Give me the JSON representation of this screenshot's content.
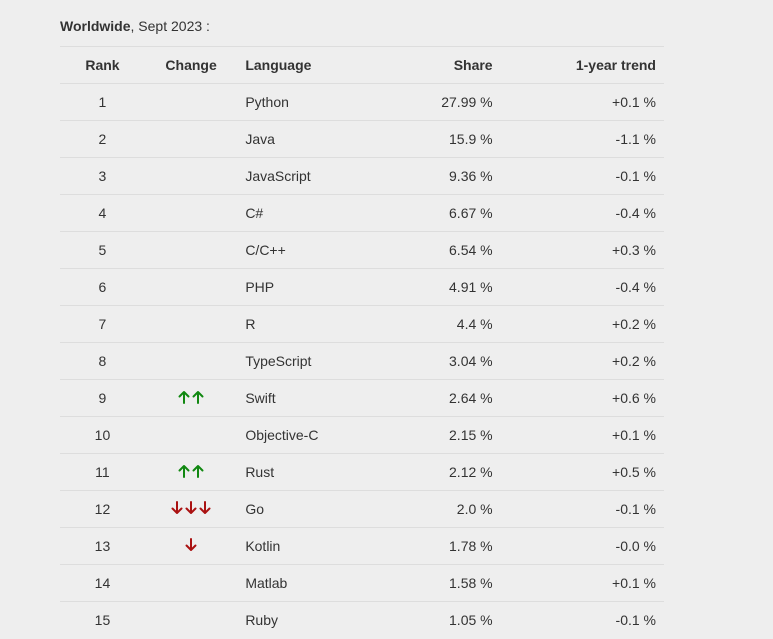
{
  "caption": {
    "region": "Worldwide",
    "date": ", Sept 2023 :"
  },
  "headers": {
    "rank": "Rank",
    "change": "Change",
    "language": "Language",
    "share": "Share",
    "trend": "1-year trend"
  },
  "colors": {
    "up_arrow": "#118811",
    "down_arrow": "#aa1111",
    "background": "#eeeeee",
    "border": "#dddddd"
  },
  "rows": [
    {
      "rank": "1",
      "change": {
        "dir": "none",
        "count": 0
      },
      "language": "Python",
      "share": "27.99 %",
      "trend": "+0.1 %"
    },
    {
      "rank": "2",
      "change": {
        "dir": "none",
        "count": 0
      },
      "language": "Java",
      "share": "15.9 %",
      "trend": "-1.1 %"
    },
    {
      "rank": "3",
      "change": {
        "dir": "none",
        "count": 0
      },
      "language": "JavaScript",
      "share": "9.36 %",
      "trend": "-0.1 %"
    },
    {
      "rank": "4",
      "change": {
        "dir": "none",
        "count": 0
      },
      "language": "C#",
      "share": "6.67 %",
      "trend": "-0.4 %"
    },
    {
      "rank": "5",
      "change": {
        "dir": "none",
        "count": 0
      },
      "language": "C/C++",
      "share": "6.54 %",
      "trend": "+0.3 %"
    },
    {
      "rank": "6",
      "change": {
        "dir": "none",
        "count": 0
      },
      "language": "PHP",
      "share": "4.91 %",
      "trend": "-0.4 %"
    },
    {
      "rank": "7",
      "change": {
        "dir": "none",
        "count": 0
      },
      "language": "R",
      "share": "4.4 %",
      "trend": "+0.2 %"
    },
    {
      "rank": "8",
      "change": {
        "dir": "none",
        "count": 0
      },
      "language": "TypeScript",
      "share": "3.04 %",
      "trend": "+0.2 %"
    },
    {
      "rank": "9",
      "change": {
        "dir": "up",
        "count": 2
      },
      "language": "Swift",
      "share": "2.64 %",
      "trend": "+0.6 %"
    },
    {
      "rank": "10",
      "change": {
        "dir": "none",
        "count": 0
      },
      "language": "Objective-C",
      "share": "2.15 %",
      "trend": "+0.1 %"
    },
    {
      "rank": "11",
      "change": {
        "dir": "up",
        "count": 2
      },
      "language": "Rust",
      "share": "2.12 %",
      "trend": "+0.5 %"
    },
    {
      "rank": "12",
      "change": {
        "dir": "down",
        "count": 3
      },
      "language": "Go",
      "share": "2.0 %",
      "trend": "-0.1 %"
    },
    {
      "rank": "13",
      "change": {
        "dir": "down",
        "count": 1
      },
      "language": "Kotlin",
      "share": "1.78 %",
      "trend": "-0.0 %"
    },
    {
      "rank": "14",
      "change": {
        "dir": "none",
        "count": 0
      },
      "language": "Matlab",
      "share": "1.58 %",
      "trend": "+0.1 %"
    },
    {
      "rank": "15",
      "change": {
        "dir": "none",
        "count": 0
      },
      "language": "Ruby",
      "share": "1.05 %",
      "trend": "-0.1 %"
    }
  ]
}
